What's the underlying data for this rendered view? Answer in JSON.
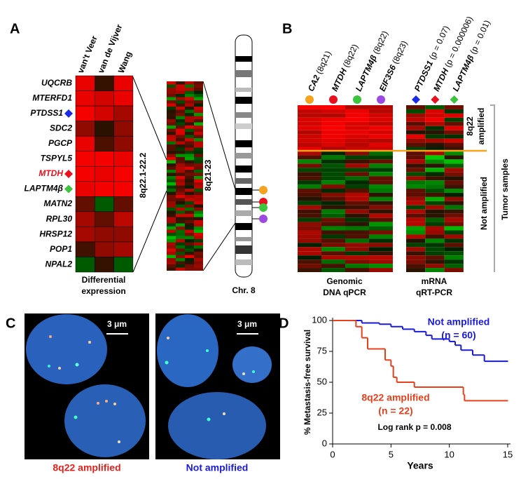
{
  "panels": {
    "a": "A",
    "b": "B",
    "c": "C",
    "d": "D"
  },
  "panel_a": {
    "columns": [
      "van't Veer",
      "van de Vijver",
      "Wang"
    ],
    "genes": [
      "UQCRB",
      "MTERFD1",
      "PTDSS1",
      "SDC2",
      "PGCP",
      "TSPYL5",
      "MTDH",
      "LAPTM4β",
      "MATN2",
      "RPL30",
      "HRSP12",
      "POP1",
      "NPAL2"
    ],
    "caption": [
      "Differential",
      "expression"
    ],
    "region1": "8q22.1-22.2",
    "region2": "8q21-23",
    "chromosome": "Chr. 8"
  },
  "panel_b": {
    "dna_columns": [
      {
        "gene": "CA2",
        "note": "(8q21)"
      },
      {
        "gene": "MTDH",
        "note": "(8q22)"
      },
      {
        "gene": "LAPTM4β",
        "note": "(8q22)"
      },
      {
        "gene": "EIF3S6",
        "note": "(8q23)"
      }
    ],
    "rna_columns": [
      {
        "gene": "PTDSS1",
        "note": "(p = 0.07)"
      },
      {
        "gene": "MTDH",
        "note": "(p = 0.000006)"
      },
      {
        "gene": "LAPTM4β",
        "note": "(p = 0.01)"
      }
    ],
    "group_amplified": [
      "8q22",
      "amplified"
    ],
    "group_not": "Not amplified",
    "side_label": "Tumor samples",
    "caption_dna": [
      "Genomic",
      "DNA qPCR"
    ],
    "caption_rna": [
      "mRNA",
      "qRT-PCR"
    ]
  },
  "panel_c": {
    "scale": "3 μm",
    "left_caption": "8q22 amplified",
    "right_caption": "Not amplified"
  },
  "chart_data": {
    "type": "step",
    "ylabel": "% Metastasis-free survival",
    "xlabel": "Years",
    "xlim": [
      0,
      15
    ],
    "ylim": [
      0,
      100
    ],
    "xticks": [
      0,
      5,
      10,
      15
    ],
    "yticks": [
      0,
      25,
      50,
      75,
      100
    ],
    "series": [
      {
        "name": [
          "Not amplified",
          "(n = 60)"
        ],
        "color": "#1a1adc",
        "x": [
          0,
          2.5,
          4,
          5,
          6,
          7,
          8,
          8.5,
          10,
          10.5,
          11,
          12,
          13,
          15
        ],
        "values": [
          100,
          98,
          97,
          95,
          93,
          91,
          88,
          85,
          83,
          80,
          76,
          72,
          67,
          67
        ]
      },
      {
        "name": [
          "8q22 amplified",
          "(n = 22)"
        ],
        "color": "#e8401c",
        "x": [
          0,
          2,
          2.5,
          3,
          4.5,
          5,
          5.2,
          5.5,
          7,
          11.2,
          11.3,
          15
        ],
        "values": [
          100,
          95,
          86,
          77,
          68,
          63,
          54,
          50,
          46,
          40,
          35,
          35
        ]
      }
    ],
    "annotation": "Log rank p = 0.008"
  }
}
